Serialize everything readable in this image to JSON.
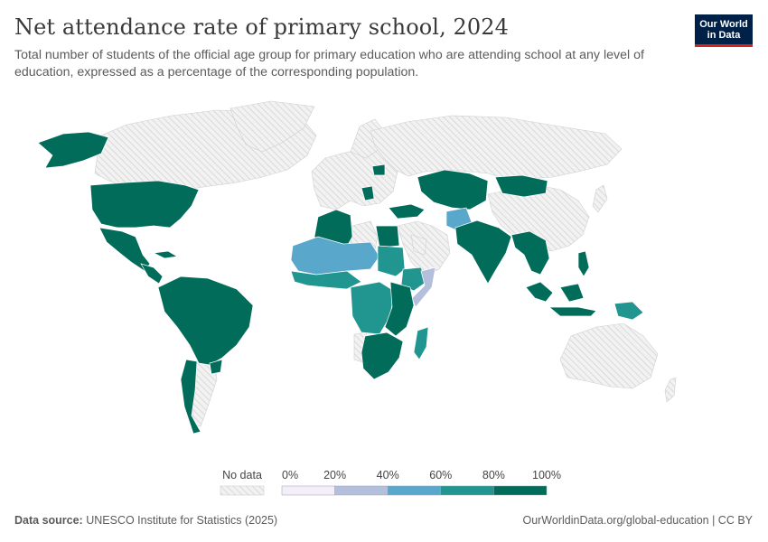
{
  "header": {
    "title": "Net attendance rate of primary school, 2024",
    "subtitle": "Total number of students of the official age group for primary education who are attending school at any level of education, expressed as a percentage of the corresponding population."
  },
  "logo": {
    "line1": "Our World",
    "line2": "in Data"
  },
  "legend": {
    "no_data_label": "No data",
    "bins": [
      {
        "label": "0%",
        "color": "#f3eef8"
      },
      {
        "label": "20%",
        "color": "#b4bfdb"
      },
      {
        "label": "40%",
        "color": "#5aa7cc"
      },
      {
        "label": "60%",
        "color": "#21958f"
      },
      {
        "label": "80%",
        "color": "#016c59"
      }
    ],
    "end_label": "100%"
  },
  "map": {
    "colors": {
      "no_data_fill": "#f2f2f2",
      "no_data_hatch": "#d6d6d6",
      "border": "#ffffff"
    },
    "shaded_regions": [
      {
        "name": "alaska",
        "bin": "80-100%"
      },
      {
        "name": "united-states",
        "bin": "80-100%"
      },
      {
        "name": "mexico",
        "bin": "80-100%"
      },
      {
        "name": "central-america",
        "bin": "80-100%"
      },
      {
        "name": "south-america",
        "bin": "80-100%"
      },
      {
        "name": "southern-cone",
        "bin": "80-100%"
      },
      {
        "name": "algeria",
        "bin": "80-100%"
      },
      {
        "name": "egypt",
        "bin": "80-100%"
      },
      {
        "name": "sahel-west",
        "bin": "40-60%"
      },
      {
        "name": "sudan",
        "bin": "60-80%"
      },
      {
        "name": "west-africa-coast",
        "bin": "60-80%"
      },
      {
        "name": "central-africa",
        "bin": "60-80%"
      },
      {
        "name": "east-africa",
        "bin": "80-100%"
      },
      {
        "name": "somalia",
        "bin": "20-40%"
      },
      {
        "name": "southern-africa",
        "bin": "80-100%"
      },
      {
        "name": "madagascar",
        "bin": "60-80%"
      },
      {
        "name": "central-asia",
        "bin": "80-100%"
      },
      {
        "name": "mongolia",
        "bin": "80-100%"
      },
      {
        "name": "afghanistan",
        "bin": "40-60%"
      },
      {
        "name": "south-asia",
        "bin": "80-100%"
      },
      {
        "name": "southeast-asia",
        "bin": "80-100%"
      },
      {
        "name": "indonesia",
        "bin": "80-100%"
      },
      {
        "name": "papua-new-guinea",
        "bin": "60-80%"
      }
    ]
  },
  "footer": {
    "source_label": "Data source:",
    "source_text": "UNESCO Institute for Statistics (2025)",
    "url": "OurWorldinData.org/global-education | CC BY"
  }
}
